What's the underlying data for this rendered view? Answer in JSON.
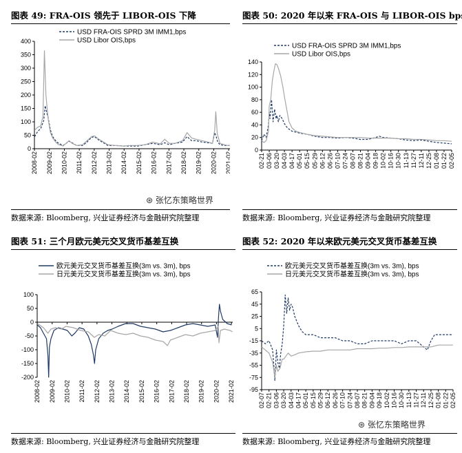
{
  "chart_data": [
    {
      "type": "line",
      "title": "图表 49: FRA-OIS 领先于 LIBOR-OIS 下降",
      "source": "数据来源: Bloomberg, 兴业证券经济与金融研究院整理",
      "ylim": [
        0,
        400
      ],
      "yticks": [
        0,
        50,
        100,
        150,
        200,
        250,
        300,
        350,
        400
      ],
      "xlim": [
        2008.08,
        2021.17
      ],
      "xticks": [
        "2008-02",
        "2009-02",
        "2010-02",
        "2011-02",
        "2012-02",
        "2013-02",
        "2014-02",
        "2015-02",
        "2016-02",
        "2017-02",
        "2018-02",
        "2019-02",
        "2020-02",
        "2021-02"
      ],
      "legend": "top-right",
      "series": [
        {
          "name": "USD FRA-OIS SPRD 3M IMM1,bps",
          "style": "dashed",
          "color": "#1f3864",
          "x": [
            2008.1,
            2008.3,
            2008.5,
            2008.7,
            2008.8,
            2008.9,
            2009.0,
            2009.15,
            2009.3,
            2009.5,
            2009.7,
            2010.0,
            2010.4,
            2010.6,
            2010.9,
            2011.3,
            2011.6,
            2011.9,
            2012.1,
            2012.4,
            2012.7,
            2013.0,
            2013.5,
            2014.0,
            2014.5,
            2015.0,
            2015.5,
            2016.0,
            2016.5,
            2016.8,
            2017.1,
            2017.5,
            2018.0,
            2018.3,
            2018.6,
            2018.9,
            2019.3,
            2019.7,
            2020.0,
            2020.15,
            2020.25,
            2020.35,
            2020.5,
            2020.8,
            2021.0,
            2021.15
          ],
          "y": [
            45,
            65,
            75,
            105,
            160,
            135,
            115,
            70,
            45,
            30,
            20,
            12,
            28,
            22,
            12,
            12,
            25,
            42,
            45,
            32,
            22,
            12,
            12,
            10,
            10,
            10,
            15,
            20,
            15,
            22,
            15,
            20,
            25,
            45,
            30,
            30,
            25,
            22,
            20,
            60,
            45,
            25,
            15,
            12,
            12,
            12
          ]
        },
        {
          "name": "USD Libor OIS,bps",
          "style": "solid",
          "color": "#a6a6a6",
          "x": [
            2008.1,
            2008.3,
            2008.5,
            2008.65,
            2008.75,
            2008.85,
            2009.0,
            2009.15,
            2009.3,
            2009.5,
            2009.7,
            2010.0,
            2010.4,
            2010.6,
            2010.9,
            2011.3,
            2011.6,
            2011.9,
            2012.1,
            2012.4,
            2012.7,
            2013.0,
            2013.5,
            2014.0,
            2014.5,
            2015.0,
            2015.5,
            2016.0,
            2016.5,
            2016.8,
            2017.1,
            2017.5,
            2018.0,
            2018.3,
            2018.6,
            2018.9,
            2019.3,
            2019.7,
            2020.0,
            2020.15,
            2020.22,
            2020.32,
            2020.5,
            2020.8,
            2021.0,
            2021.15
          ],
          "y": [
            70,
            80,
            85,
            120,
            365,
            200,
            110,
            60,
            40,
            25,
            15,
            10,
            30,
            20,
            12,
            15,
            30,
            45,
            48,
            35,
            25,
            15,
            12,
            10,
            12,
            12,
            15,
            25,
            18,
            35,
            20,
            20,
            30,
            60,
            40,
            35,
            30,
            25,
            20,
            70,
            138,
            55,
            20,
            15,
            12,
            12
          ]
        }
      ]
    },
    {
      "type": "line",
      "title": "图表 50: 2020 年以来 FRA-OIS 与 LIBOR-OIS bps",
      "source": "数据来源: Bloomberg, 兴业证券经济与金融研究院整理",
      "ylim": [
        0,
        140
      ],
      "yticks": [
        0,
        20,
        40,
        60,
        80,
        100,
        120,
        140
      ],
      "xticks": [
        "02-21",
        "03-06",
        "03-20",
        "04-03",
        "04-17",
        "05-01",
        "05-15",
        "05-29",
        "06-12",
        "06-26",
        "07-10",
        "07-24",
        "08-07",
        "08-21",
        "09-04",
        "09-18",
        "10-02",
        "10-16",
        "10-30",
        "11-13",
        "11-27",
        "12-11",
        "12-25",
        "01-08",
        "01-22",
        "02-05"
      ],
      "legend": "top-right",
      "series": [
        {
          "name": "USD FRA-OIS SPRD 3M IMM1,bps",
          "style": "dashed",
          "color": "#1f3864",
          "x": [
            0,
            0.3,
            0.6,
            0.9,
            1.0,
            1.1,
            1.3,
            1.5,
            1.7,
            1.9,
            2.0,
            2.2,
            2.4,
            2.7,
            3.0,
            3.4,
            4.0,
            5.0,
            6.0,
            7.0,
            8.0,
            9.0,
            10.0,
            11.0,
            12.0,
            13.0,
            14.0,
            15.0,
            15.5,
            16.0,
            17.0,
            18.0,
            19.0,
            20.0,
            21.0,
            22.0,
            23.0,
            24.0,
            25.0
          ],
          "y": [
            15,
            25,
            20,
            40,
            60,
            50,
            80,
            45,
            65,
            50,
            55,
            45,
            55,
            50,
            42,
            35,
            30,
            27,
            25,
            22,
            20,
            20,
            19,
            20,
            19,
            17,
            17,
            20,
            22,
            20,
            19,
            18,
            16,
            15,
            16,
            14,
            12,
            11,
            10
          ]
        },
        {
          "name": "USD Libor OIS,bps",
          "style": "solid",
          "color": "#a6a6a6",
          "x": [
            0,
            0.3,
            0.6,
            0.9,
            1.0,
            1.2,
            1.4,
            1.6,
            1.8,
            2.0,
            2.2,
            2.5,
            2.8,
            3.0,
            3.3,
            3.6,
            4.0,
            4.5,
            5.0,
            6.0,
            7.0,
            8.0,
            9.0,
            10.0,
            11.0,
            12.0,
            13.0,
            14.0,
            15.0,
            16.0,
            17.0,
            18.0,
            19.0,
            20.0,
            21.0,
            22.0,
            23.0,
            24.0,
            25.0
          ],
          "y": [
            15,
            12,
            15,
            30,
            70,
            80,
            110,
            125,
            137,
            136,
            130,
            118,
            100,
            85,
            65,
            45,
            35,
            30,
            28,
            25,
            23,
            22,
            21,
            20,
            20,
            20,
            20,
            19,
            19,
            19,
            19,
            18,
            18,
            17,
            17,
            16,
            15,
            15,
            14
          ]
        }
      ]
    },
    {
      "type": "line",
      "title": "图表 51: 三个月欧元美元交叉货币基差互换",
      "source": "数据来源: Bloomberg, 兴业证券经济与金融研究院整理",
      "ylim": [
        -200,
        100
      ],
      "yticks": [
        -200,
        -150,
        -100,
        -50,
        0,
        50,
        100
      ],
      "xlim": [
        2008.08,
        2021.17
      ],
      "xticks": [
        "2008-02",
        "2009-02",
        "2010-02",
        "2011-02",
        "2012-02",
        "2013-02",
        "2014-02",
        "2015-02",
        "2016-02",
        "2017-02",
        "2018-02",
        "2019-02",
        "2020-02",
        "2021-02"
      ],
      "legend": "top-right",
      "series": [
        {
          "name": "欧元美元交叉货币基差互换(3m vs. 3m), bps",
          "style": "solid",
          "color": "#1f3864",
          "x": [
            2008.1,
            2008.3,
            2008.5,
            2008.7,
            2008.8,
            2008.85,
            2008.9,
            2009.0,
            2009.2,
            2009.5,
            2009.8,
            2010.1,
            2010.4,
            2010.6,
            2010.9,
            2011.2,
            2011.5,
            2011.7,
            2011.85,
            2011.92,
            2012.0,
            2012.2,
            2012.5,
            2012.8,
            2013.1,
            2013.5,
            2014.0,
            2014.5,
            2015.0,
            2015.5,
            2016.0,
            2016.5,
            2017.0,
            2017.5,
            2018.0,
            2018.5,
            2019.0,
            2019.5,
            2020.0,
            2020.15,
            2020.22,
            2020.28,
            2020.35,
            2020.5,
            2020.8,
            2021.1
          ],
          "y": [
            -10,
            -20,
            -40,
            -60,
            -120,
            -200,
            -90,
            -60,
            -30,
            -20,
            -25,
            -30,
            -50,
            -40,
            -20,
            -25,
            -50,
            -80,
            -120,
            -150,
            -100,
            -60,
            -40,
            -30,
            -25,
            -15,
            -5,
            -5,
            -15,
            -20,
            -25,
            -35,
            -30,
            -20,
            -10,
            -5,
            -10,
            -15,
            -10,
            -55,
            20,
            65,
            40,
            10,
            -5,
            -10
          ]
        },
        {
          "name": "日元美元交叉货币基差互换(3m vs. 3m), bps",
          "style": "solid",
          "color": "#a6a6a6",
          "x": [
            2008.1,
            2008.5,
            2008.8,
            2009.0,
            2009.3,
            2009.7,
            2010.0,
            2010.5,
            2011.0,
            2011.5,
            2011.9,
            2012.2,
            2012.6,
            2013.0,
            2013.5,
            2014.0,
            2014.5,
            2015.0,
            2015.5,
            2016.0,
            2016.5,
            2016.8,
            2017.0,
            2017.5,
            2018.0,
            2018.5,
            2019.0,
            2019.5,
            2020.0,
            2020.2,
            2020.25,
            2020.35,
            2020.6,
            2021.0,
            2021.15
          ],
          "y": [
            -5,
            -20,
            -40,
            -25,
            -20,
            -25,
            -15,
            -20,
            -30,
            -35,
            -55,
            -45,
            -50,
            -30,
            -40,
            -45,
            -40,
            -50,
            -55,
            -65,
            -70,
            -85,
            -65,
            -55,
            -45,
            -50,
            -40,
            -35,
            -30,
            -15,
            -75,
            -30,
            -25,
            -30,
            -35
          ]
        }
      ]
    },
    {
      "type": "line",
      "title": "图表 52: 2020 年以来欧元美元交叉货币基差互换",
      "source": "数据来源: Bloomberg, 兴业证券经济与金融研究院整理",
      "ylim": [
        -95,
        65
      ],
      "yticks": [
        65,
        45,
        25,
        5,
        -15,
        -35,
        -55,
        -75,
        -95
      ],
      "xticks": [
        "02-07",
        "02-21",
        "03-06",
        "03-20",
        "04-03",
        "04-17",
        "05-01",
        "05-15",
        "05-29",
        "06-12",
        "06-26",
        "07-10",
        "07-24",
        "08-07",
        "08-21",
        "09-04",
        "09-18",
        "10-02",
        "10-16",
        "10-30",
        "11-13",
        "11-27",
        "12-11",
        "12-25",
        "01-08",
        "01-22",
        "02-05"
      ],
      "legend": "top-right",
      "series": [
        {
          "name": "欧元美元交叉货币基差互换(3m vs. 3m), bps",
          "style": "dashed",
          "color": "#1f3864",
          "x": [
            0,
            0.5,
            1.0,
            1.5,
            1.8,
            2.0,
            2.2,
            2.4,
            2.6,
            2.8,
            3.0,
            3.2,
            3.4,
            3.6,
            3.8,
            4.0,
            4.2,
            4.5,
            5.0,
            5.5,
            6.0,
            7.0,
            8.0,
            9.0,
            10.0,
            11.0,
            12.0,
            13.0,
            14.0,
            15.0,
            16.0,
            17.0,
            18.0,
            19.0,
            20.0,
            21.0,
            22.0,
            22.5,
            23.0,
            23.5,
            24.0,
            25.0,
            26.0
          ],
          "y": [
            -15,
            -20,
            -15,
            -30,
            -80,
            -30,
            -50,
            -60,
            -35,
            -20,
            10,
            60,
            30,
            55,
            35,
            45,
            40,
            25,
            10,
            0,
            -5,
            -5,
            -10,
            -10,
            -10,
            -15,
            -15,
            -20,
            -20,
            -15,
            -15,
            -15,
            -15,
            -20,
            -15,
            -15,
            -25,
            -30,
            -15,
            -5,
            -5,
            -5,
            -5
          ]
        },
        {
          "name": "日元美元交叉货币基差互换(3m vs. 3m), bps",
          "style": "solid",
          "color": "#a6a6a6",
          "x": [
            0,
            0.5,
            1.0,
            1.5,
            1.8,
            2.0,
            2.2,
            2.5,
            2.8,
            3.0,
            3.3,
            3.6,
            4.0,
            4.5,
            5.0,
            6.0,
            7.0,
            8.0,
            9.0,
            10.0,
            11.0,
            12.0,
            13.0,
            14.0,
            15.0,
            16.0,
            17.0,
            18.0,
            19.0,
            20.0,
            21.0,
            22.0,
            23.0,
            24.0,
            25.0,
            26.0
          ],
          "y": [
            -25,
            -30,
            -35,
            -50,
            -75,
            -55,
            -65,
            -60,
            -45,
            -45,
            -40,
            -35,
            -40,
            -38,
            -35,
            -33,
            -32,
            -32,
            -30,
            -30,
            -30,
            -30,
            -28,
            -28,
            -28,
            -27,
            -27,
            -26,
            -26,
            -25,
            -25,
            -25,
            -25,
            -22,
            -22,
            -22
          ]
        }
      ]
    }
  ],
  "watermark": "张忆东策略世界"
}
